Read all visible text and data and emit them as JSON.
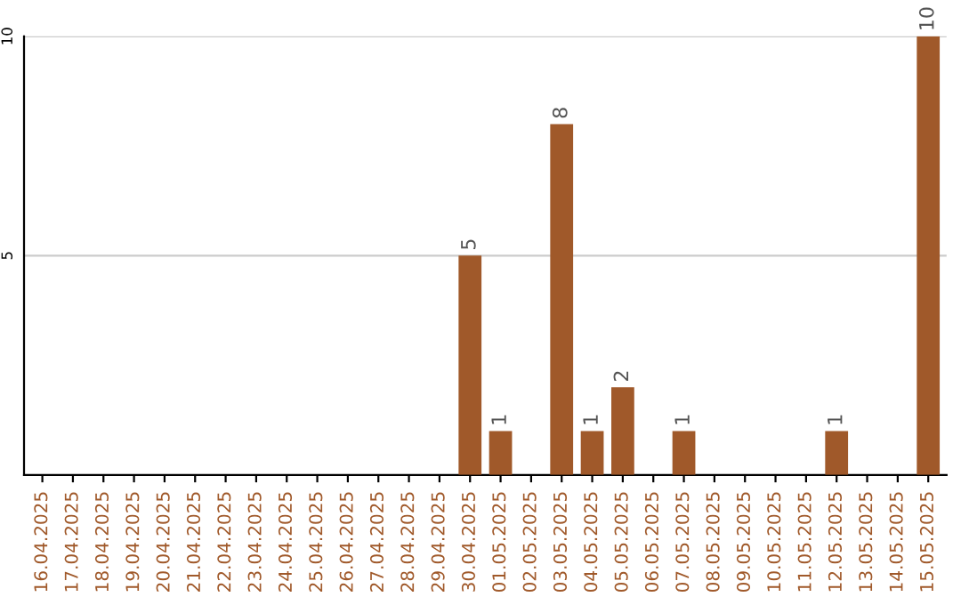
{
  "chart_data": {
    "type": "bar",
    "categories": [
      "16.04.2025",
      "17.04.2025",
      "18.04.2025",
      "19.04.2025",
      "20.04.2025",
      "21.04.2025",
      "22.04.2025",
      "23.04.2025",
      "24.04.2025",
      "25.04.2025",
      "26.04.2025",
      "27.04.2025",
      "28.04.2025",
      "29.04.2025",
      "30.04.2025",
      "01.05.2025",
      "02.05.2025",
      "03.05.2025",
      "04.05.2025",
      "05.05.2025",
      "06.05.2025",
      "07.05.2025",
      "08.05.2025",
      "09.05.2025",
      "10.05.2025",
      "11.05.2025",
      "12.05.2025",
      "13.05.2025",
      "14.05.2025",
      "15.05.2025"
    ],
    "values": [
      0,
      0,
      0,
      0,
      0,
      0,
      0,
      0,
      0,
      0,
      0,
      0,
      0,
      0,
      5,
      1,
      0,
      8,
      1,
      2,
      0,
      1,
      0,
      0,
      0,
      0,
      1,
      0,
      0,
      10
    ],
    "value_labels": [
      null,
      null,
      null,
      null,
      null,
      null,
      null,
      null,
      null,
      null,
      null,
      null,
      null,
      null,
      "5",
      "1",
      null,
      "8",
      "1",
      "2",
      null,
      "1",
      null,
      null,
      null,
      null,
      "1",
      null,
      null,
      "10"
    ],
    "color": "#a0592a",
    "ylim": [
      0,
      10
    ],
    "yticks": [
      5,
      10
    ],
    "grid": "y"
  }
}
